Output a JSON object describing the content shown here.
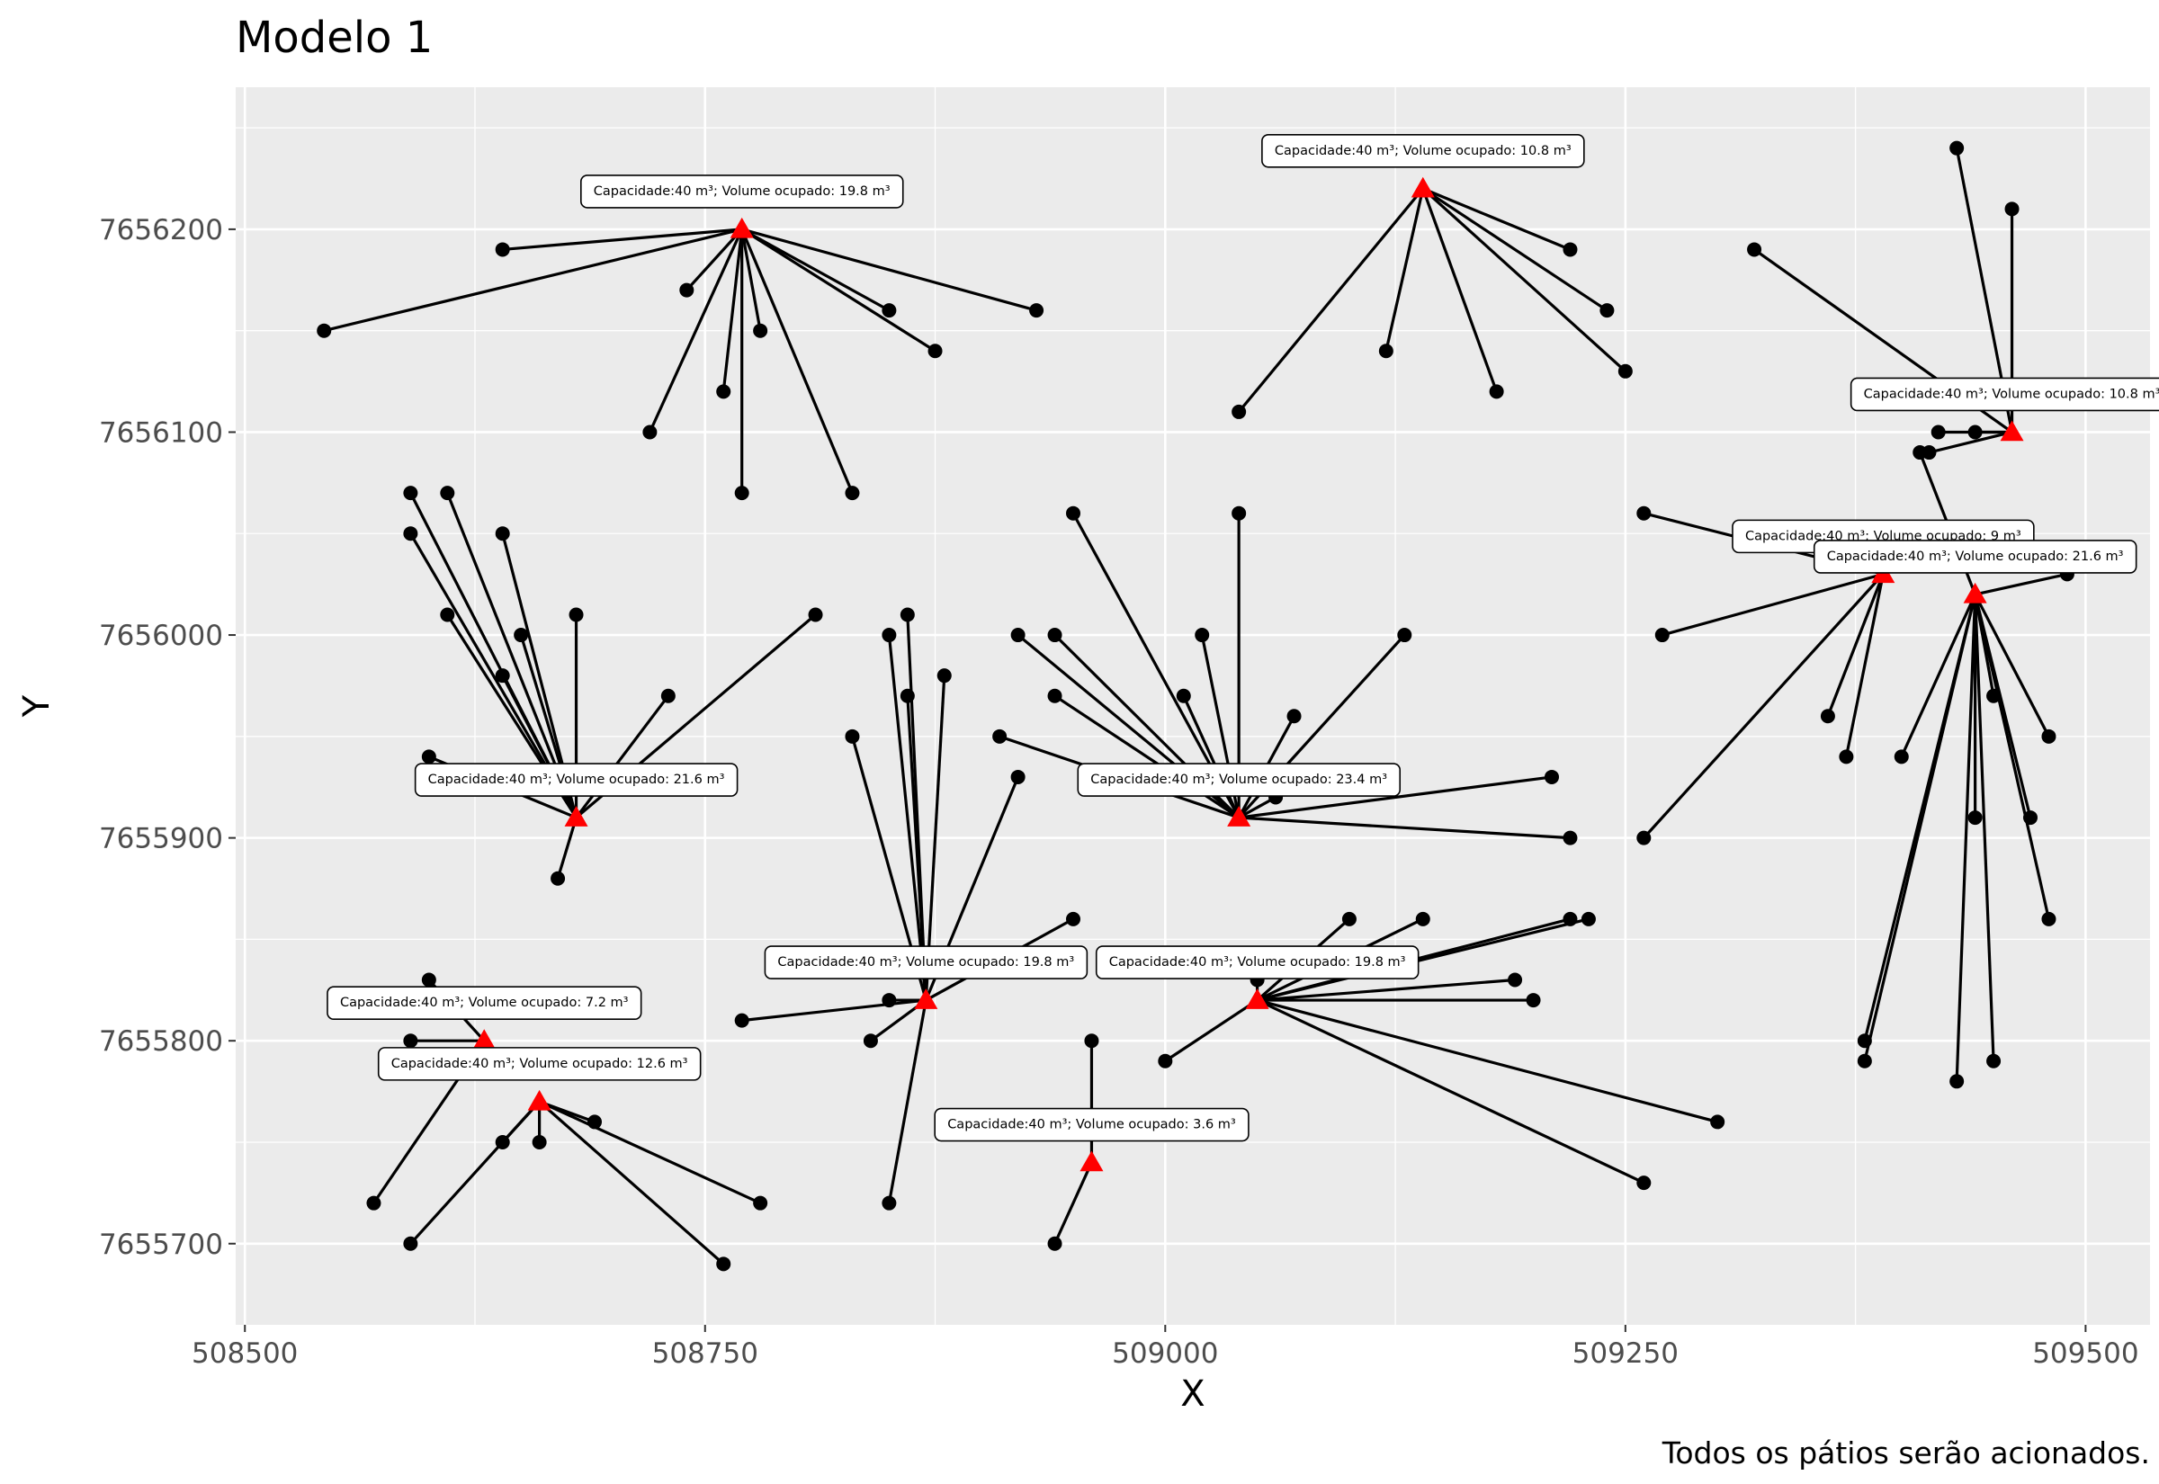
{
  "chart_data": {
    "type": "scatter",
    "title": "Modelo 1",
    "xlabel": "X",
    "ylabel": "Y",
    "caption": "Todos os pátios serão acionados.",
    "xlim": [
      508495,
      509535
    ],
    "ylim": [
      7655660,
      7656270
    ],
    "x_ticks": [
      508500,
      508750,
      509000,
      509250,
      509500
    ],
    "y_ticks": [
      7655700,
      7655800,
      7655900,
      7656000,
      7656100,
      7656200
    ],
    "grid": true,
    "colors": {
      "panel": "#EBEBEB",
      "grid": "#FFFFFF",
      "point": "#000000",
      "yard": "#FF0000",
      "line": "#000000"
    },
    "yards": [
      {
        "x": 508770,
        "y": 7656200,
        "label": "Capacidade:40 m³; Volume ocupado: 19.8 m³",
        "points": [
          [
            508543,
            7656150
          ],
          [
            508640,
            7656190
          ],
          [
            508740,
            7656170
          ],
          [
            508780,
            7656150
          ],
          [
            508760,
            7656120
          ],
          [
            508720,
            7656100
          ],
          [
            508770,
            7656070
          ],
          [
            508830,
            7656070
          ],
          [
            508850,
            7656160
          ],
          [
            508875,
            7656140
          ],
          [
            508930,
            7656160
          ]
        ]
      },
      {
        "x": 509140,
        "y": 7656220,
        "label": "Capacidade:40 m³; Volume ocupado: 10.8 m³",
        "points": [
          [
            509040,
            7656110
          ],
          [
            509120,
            7656140
          ],
          [
            509180,
            7656120
          ],
          [
            509220,
            7656190
          ],
          [
            509240,
            7656160
          ],
          [
            509250,
            7656130
          ]
        ]
      },
      {
        "x": 509460,
        "y": 7656100,
        "label": "Capacidade:40 m³; Volume ocupado: 10.8 m³",
        "points": [
          [
            509320,
            7656190
          ],
          [
            509430,
            7656240
          ],
          [
            509460,
            7656210
          ],
          [
            509420,
            7656100
          ],
          [
            509440,
            7656100
          ],
          [
            509415,
            7656090
          ]
        ]
      },
      {
        "x": 509390,
        "y": 7656030,
        "label": "Capacidade:40 m³; Volume ocupado: 9 m³",
        "points": [
          [
            509260,
            7656060
          ],
          [
            509270,
            7656000
          ],
          [
            509260,
            7655900
          ],
          [
            509360,
            7655960
          ],
          [
            509370,
            7655940
          ]
        ]
      },
      {
        "x": 509440,
        "y": 7656020,
        "label": "Capacidade:40 m³; Volume ocupado: 21.6 m³",
        "points": [
          [
            509490,
            7656030
          ],
          [
            509400,
            7655940
          ],
          [
            509450,
            7655970
          ],
          [
            509480,
            7655950
          ],
          [
            509440,
            7655910
          ],
          [
            509470,
            7655910
          ],
          [
            509480,
            7655860
          ],
          [
            509380,
            7655800
          ],
          [
            509380,
            7655790
          ],
          [
            509430,
            7655780
          ],
          [
            509450,
            7655790
          ],
          [
            509410,
            7656090
          ]
        ]
      },
      {
        "x": 508680,
        "y": 7655910,
        "label": "Capacidade:40 m³; Volume ocupado: 21.6 m³",
        "points": [
          [
            508590,
            7656070
          ],
          [
            508610,
            7656070
          ],
          [
            508590,
            7656050
          ],
          [
            508640,
            7656050
          ],
          [
            508610,
            7656010
          ],
          [
            508650,
            7656000
          ],
          [
            508640,
            7655980
          ],
          [
            508680,
            7656010
          ],
          [
            508730,
            7655970
          ],
          [
            508810,
            7656010
          ],
          [
            508600,
            7655940
          ],
          [
            508670,
            7655880
          ]
        ]
      },
      {
        "x": 509040,
        "y": 7655910,
        "label": "Capacidade:40 m³; Volume ocupado: 23.4 m³",
        "points": [
          [
            508950,
            7656060
          ],
          [
            509040,
            7656060
          ],
          [
            508920,
            7656000
          ],
          [
            508940,
            7656000
          ],
          [
            509020,
            7656000
          ],
          [
            509130,
            7656000
          ],
          [
            509010,
            7655970
          ],
          [
            508940,
            7655970
          ],
          [
            509070,
            7655960
          ],
          [
            508910,
            7655950
          ],
          [
            509060,
            7655920
          ],
          [
            509210,
            7655930
          ],
          [
            509220,
            7655900
          ]
        ]
      },
      {
        "x": 508870,
        "y": 7655820,
        "label": "Capacidade:40 m³; Volume ocupado: 19.8 m³",
        "points": [
          [
            508850,
            7656000
          ],
          [
            508860,
            7656010
          ],
          [
            508880,
            7655980
          ],
          [
            508860,
            7655970
          ],
          [
            508830,
            7655950
          ],
          [
            508920,
            7655930
          ],
          [
            508950,
            7655860
          ],
          [
            508770,
            7655810
          ],
          [
            508850,
            7655820
          ],
          [
            508840,
            7655800
          ],
          [
            508850,
            7655720
          ]
        ]
      },
      {
        "x": 509050,
        "y": 7655820,
        "label": "Capacidade:40 m³; Volume ocupado: 19.8 m³",
        "points": [
          [
            509100,
            7655860
          ],
          [
            509140,
            7655860
          ],
          [
            509220,
            7655860
          ],
          [
            509230,
            7655860
          ],
          [
            509190,
            7655830
          ],
          [
            509200,
            7655820
          ],
          [
            509050,
            7655830
          ],
          [
            509000,
            7655790
          ],
          [
            509300,
            7655760
          ],
          [
            509260,
            7655730
          ]
        ]
      },
      {
        "x": 508630,
        "y": 7655800,
        "label": "Capacidade:40 m³; Volume ocupado: 7.2 m³",
        "points": [
          [
            508600,
            7655830
          ],
          [
            508590,
            7655800
          ],
          [
            508570,
            7655720
          ]
        ]
      },
      {
        "x": 508660,
        "y": 7655770,
        "label": "Capacidade:40 m³; Volume ocupado: 12.6 m³",
        "points": [
          [
            508640,
            7655750
          ],
          [
            508660,
            7655750
          ],
          [
            508690,
            7655760
          ],
          [
            508780,
            7655720
          ],
          [
            508590,
            7655700
          ],
          [
            508760,
            7655690
          ]
        ]
      },
      {
        "x": 508960,
        "y": 7655740,
        "label": "Capacidade:40 m³; Volume ocupado: 3.6 m³",
        "points": [
          [
            508960,
            7655800
          ],
          [
            508940,
            7655700
          ]
        ]
      }
    ]
  }
}
